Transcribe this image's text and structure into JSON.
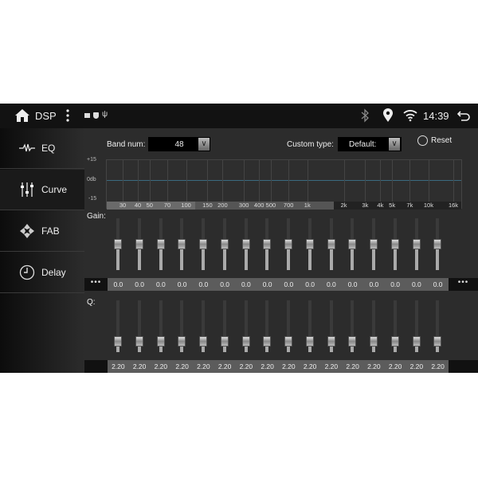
{
  "status": {
    "title": "DSP",
    "time": "14:39",
    "icons": [
      "home-icon",
      "menu-dots-icon",
      "gallery-icon",
      "shield-icon",
      "usb-icon",
      "bluetooth-icon",
      "location-icon",
      "wifi-icon",
      "back-icon"
    ]
  },
  "sidebar": {
    "items": [
      {
        "label": "EQ",
        "icon": "waveform-icon"
      },
      {
        "label": "Curve",
        "icon": "sliders-icon",
        "active": true
      },
      {
        "label": "FAB",
        "icon": "fader-balance-icon"
      },
      {
        "label": "Delay",
        "icon": "clock-icon"
      }
    ]
  },
  "controls": {
    "band_num_label": "Band num:",
    "band_num_value": "48",
    "custom_type_label": "Custom type:",
    "custom_type_value": "Default:",
    "reset_label": "Reset"
  },
  "graph": {
    "y_top": "+15",
    "y_mid": "0db",
    "y_bottom": "-15",
    "freq_labels": [
      "30",
      "40",
      "50",
      "70",
      "100",
      "150",
      "200",
      "300",
      "400",
      "500",
      "700",
      "1k",
      "2k",
      "3k",
      "4k",
      "5k",
      "7k",
      "10k",
      "16k"
    ],
    "freq_values": [
      30,
      40,
      50,
      70,
      100,
      150,
      200,
      300,
      400,
      500,
      700,
      1000,
      2000,
      3000,
      4000,
      5000,
      7000,
      10000,
      16000
    ]
  },
  "gain": {
    "label": "Gain:",
    "range": [
      -15,
      15
    ],
    "values": [
      "0.0",
      "0.0",
      "0.0",
      "0.0",
      "0.0",
      "0.0",
      "0.0",
      "0.0",
      "0.0",
      "0.0",
      "0.0",
      "0.0",
      "0.0",
      "0.0",
      "0.0",
      "0.0"
    ],
    "more_left": "•••",
    "more_right": "•••"
  },
  "q": {
    "label": "Q:",
    "values": [
      "2.20",
      "2.20",
      "2.20",
      "2.20",
      "2.20",
      "2.20",
      "2.20",
      "2.20",
      "2.20",
      "2.20",
      "2.20",
      "2.20",
      "2.20",
      "2.20",
      "2.20",
      "2.20"
    ]
  }
}
